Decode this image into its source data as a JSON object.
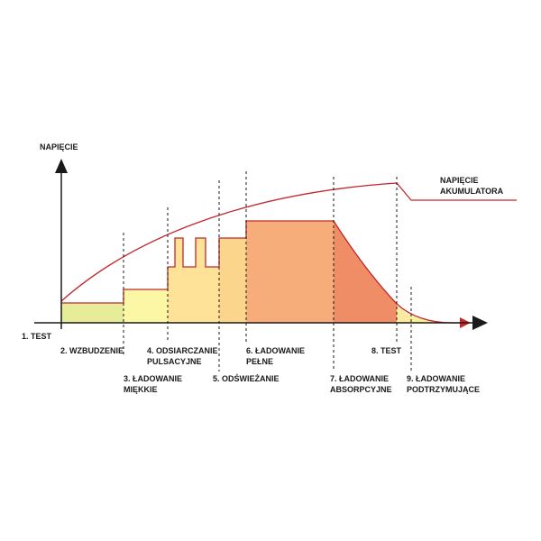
{
  "axis": {
    "y_label": "NAPIĘCIE",
    "x_start_label": "1. TEST"
  },
  "voltage_curve": {
    "label_line1": "NAPIĘCIE",
    "label_line2": "AKUMULATORA",
    "color": "#c0282d"
  },
  "phases": [
    {
      "id": "wzbudzenie",
      "line1": "2. WZBUDZENIE",
      "line2": "",
      "fill": "#e6ec98"
    },
    {
      "id": "ladowanie-miekkie",
      "line1": "3. ŁADOWANIE",
      "line2": "MIĘKKIE",
      "fill": "#fcf7a4"
    },
    {
      "id": "odsiarczanie",
      "line1": "4. ODSIARCZANIE",
      "line2": "PULSACYJNE",
      "fill": "#fde298"
    },
    {
      "id": "odswiezanie",
      "line1": "5. ODŚWIEŻANIE",
      "line2": "",
      "fill": "#fcd58c"
    },
    {
      "id": "ladowanie-pelne",
      "line1": "6. ŁADOWANIE",
      "line2": "PEŁNE",
      "fill": "#f7ad7a"
    },
    {
      "id": "ladowanie-absorpcyjne",
      "line1": "7. ŁADOWANIE",
      "line2": "ABSORPCYJNE",
      "fill": "#ef8e66"
    },
    {
      "id": "test-8",
      "line1": "8. TEST",
      "line2": "",
      "fill": "#fbeaa0"
    },
    {
      "id": "ladowanie-podtrzymujace",
      "line1": "9. ŁADOWANIE",
      "line2": "PODTRZYMUJĄCE",
      "fill": "#f7f28e"
    }
  ]
}
